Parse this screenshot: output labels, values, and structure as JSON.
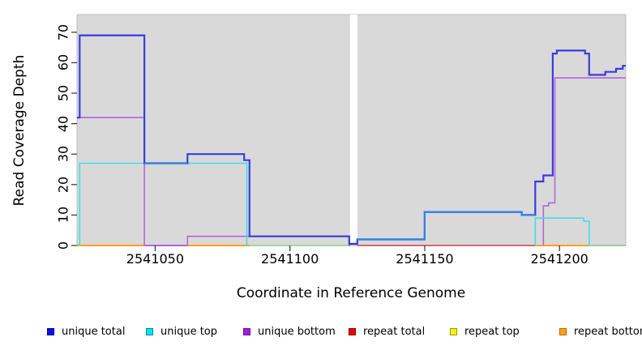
{
  "figure": {
    "xlabel": "Coordinate in Reference Genome",
    "ylabel": "Read Coverage Depth",
    "panel_bg": "#d9d9d9",
    "panel_border": "#bdbdbd",
    "gap_region_note": "white vertical band (no data) between x=2541122.3 and x=2541125"
  },
  "legend": {
    "items": [
      {
        "label": "unique total",
        "fill": "#0f0fe8",
        "border": "#0000a0"
      },
      {
        "label": "unique top",
        "fill": "#00e5ee",
        "border": "#008b93"
      },
      {
        "label": "unique bottom",
        "fill": "#a21fd0",
        "border": "#6a0dad"
      },
      {
        "label": "repeat total",
        "fill": "#ee0000",
        "border": "#8b0000"
      },
      {
        "label": "repeat top",
        "fill": "#f5f500",
        "border": "#9a9a00"
      },
      {
        "label": "repeat bottom",
        "fill": "#ffa018",
        "border": "#b86b00"
      }
    ],
    "positions_x": [
      58,
      180,
      300,
      430,
      555,
      690
    ],
    "position_y": 402
  },
  "chart_data": {
    "type": "line",
    "subtype": "step-coverage-plot",
    "title": "",
    "xlabel": "Coordinate in Reference Genome",
    "ylabel": "Read Coverage Depth",
    "x_domain": [
      2541021,
      2541224.6
    ],
    "y_domain": [
      0,
      75.8
    ],
    "x_ticks": [
      2541050,
      2541100,
      2541150,
      2541200
    ],
    "y_ticks": [
      0,
      10,
      20,
      30,
      40,
      50,
      60,
      70
    ],
    "grid": "off",
    "legend_position": "bottom",
    "gap": [
      2541122.3,
      2541125
    ],
    "series": [
      {
        "name": "unique total",
        "color_drawn": "#3b3be0",
        "breakpoints": [
          [
            2541021,
            42
          ],
          [
            2541022,
            69
          ],
          [
            2541046,
            27
          ],
          [
            2541062,
            30
          ],
          [
            2541083,
            28
          ],
          [
            2541085,
            3
          ],
          [
            2541122,
            0.5
          ],
          [
            2541125,
            2
          ],
          [
            2541150,
            11
          ],
          [
            2541186,
            10
          ],
          [
            2541191,
            21
          ],
          [
            2541194,
            23
          ],
          [
            2541197.5,
            63
          ],
          [
            2541199,
            64
          ],
          [
            2541209.5,
            63
          ],
          [
            2541211,
            56
          ],
          [
            2541217,
            57
          ],
          [
            2541221,
            58
          ],
          [
            2541223.5,
            59
          ]
        ],
        "end_x": 2541224.6
      },
      {
        "name": "unique top",
        "color_drawn": "#3fe0e8",
        "breakpoints": [
          [
            2541022,
            0
          ],
          [
            2541022,
            27
          ],
          [
            2541084,
            0
          ],
          [
            2541125,
            2
          ],
          [
            2541150,
            11
          ],
          [
            2541186,
            10
          ],
          [
            2541191,
            9
          ],
          [
            2541209,
            8
          ],
          [
            2541211,
            0
          ]
        ],
        "end_x": 2541224.6,
        "note": "where unique top equals unique total the line renders as brighter dodger blue under the total line"
      },
      {
        "name": "unique bottom",
        "color_drawn": "#b266db",
        "breakpoints": [
          [
            2541021,
            42
          ],
          [
            2541046,
            0
          ],
          [
            2541062,
            3
          ],
          [
            2541122,
            0
          ],
          [
            2541194,
            0
          ],
          [
            2541194,
            13
          ],
          [
            2541196,
            14
          ],
          [
            2541198.3,
            55
          ]
        ],
        "end_x": 2541224.6
      },
      {
        "name": "repeat total",
        "color_drawn": "#cc3a5c",
        "breakpoints": [
          [
            2541021,
            0
          ]
        ],
        "end_x": 2541224.6
      },
      {
        "name": "repeat top",
        "color_drawn": "#f5f500",
        "breakpoints": [
          [
            2541021,
            0
          ]
        ],
        "end_x": 2541224.6
      },
      {
        "name": "repeat bottom",
        "color_drawn": "#ffa01e",
        "breakpoints": [
          [
            2541021,
            0
          ]
        ],
        "end_x": 2541224.6
      }
    ],
    "render_pieces": {
      "zero_lines": [
        {
          "color": "#cc3a5c",
          "w": 1.5,
          "segments": [
            [
              2541125,
              2541224.6
            ]
          ]
        },
        {
          "color": "#ffa01e",
          "w": 2.0,
          "segments": [
            [
              2541021,
              2541046
            ],
            [
              2541062,
              2541085
            ],
            [
              2541191,
              2541211
            ]
          ]
        },
        {
          "color": "#97d49b",
          "w": 1.8,
          "segments": [
            [
              2541085,
              2541122
            ],
            [
              2541211,
              2541224.6
            ]
          ]
        },
        {
          "color": "#c258cc",
          "w": 2.0,
          "segments": [
            [
              2541046,
              2541062
            ]
          ]
        }
      ],
      "step_paths": [
        {
          "color": "#b266db",
          "w": 1.6,
          "bps": [
            [
              2541021,
              42
            ],
            [
              2541046,
              0
            ],
            [
              2541062,
              3
            ],
            [
              2541122,
              0
            ]
          ],
          "end": 2541122.4
        },
        {
          "color": "#b266db",
          "w": 1.6,
          "bps": [
            [
              2541194,
              0
            ],
            [
              2541194,
              13
            ],
            [
              2541196,
              14
            ],
            [
              2541198.3,
              55
            ]
          ],
          "end": 2541224.6
        },
        {
          "color": "#3fe0e8",
          "w": 1.6,
          "bps": [
            [
              2541022,
              0
            ],
            [
              2541022,
              27
            ],
            [
              2541084,
              0
            ]
          ],
          "end": 2541084.2
        },
        {
          "color": "#3fe0e8",
          "w": 1.6,
          "bps": [
            [
              2541191,
              0
            ],
            [
              2541191,
              9
            ],
            [
              2541209,
              8
            ],
            [
              2541211,
              0
            ]
          ],
          "end": 2541211.2
        }
      ],
      "gap_rect": {
        "x0": 2541122.3,
        "x1": 2541125,
        "y_top_value": 75.8,
        "y_bottom_value": 1.15,
        "fill": "#ffffff"
      },
      "blue_path": {
        "color": "#3b3be0",
        "w": 2.2,
        "bps": [
          [
            2541021,
            42
          ],
          [
            2541022,
            69
          ],
          [
            2541046,
            27
          ],
          [
            2541062,
            30
          ],
          [
            2541083,
            28
          ],
          [
            2541085,
            3
          ],
          [
            2541122,
            0.5
          ],
          [
            2541125,
            2
          ],
          [
            2541150,
            11
          ],
          [
            2541186,
            10
          ],
          [
            2541191,
            21
          ],
          [
            2541194,
            23
          ],
          [
            2541197.5,
            63
          ],
          [
            2541199,
            64
          ],
          [
            2541209.5,
            63
          ],
          [
            2541211,
            56
          ],
          [
            2541217,
            57
          ],
          [
            2541221,
            58
          ],
          [
            2541223.5,
            59
          ]
        ],
        "end": 2541224.6
      },
      "dodger_overlays": [
        {
          "color": "#2e82e8",
          "w": 2.2,
          "bps": [
            [
              2541046,
              27
            ]
          ],
          "end": 2541062
        },
        {
          "color": "#2e82e8",
          "w": 2.2,
          "bps": [
            [
              2541125,
              2
            ],
            [
              2541150,
              11
            ],
            [
              2541186,
              10
            ]
          ],
          "end": 2541191
        }
      ]
    }
  }
}
